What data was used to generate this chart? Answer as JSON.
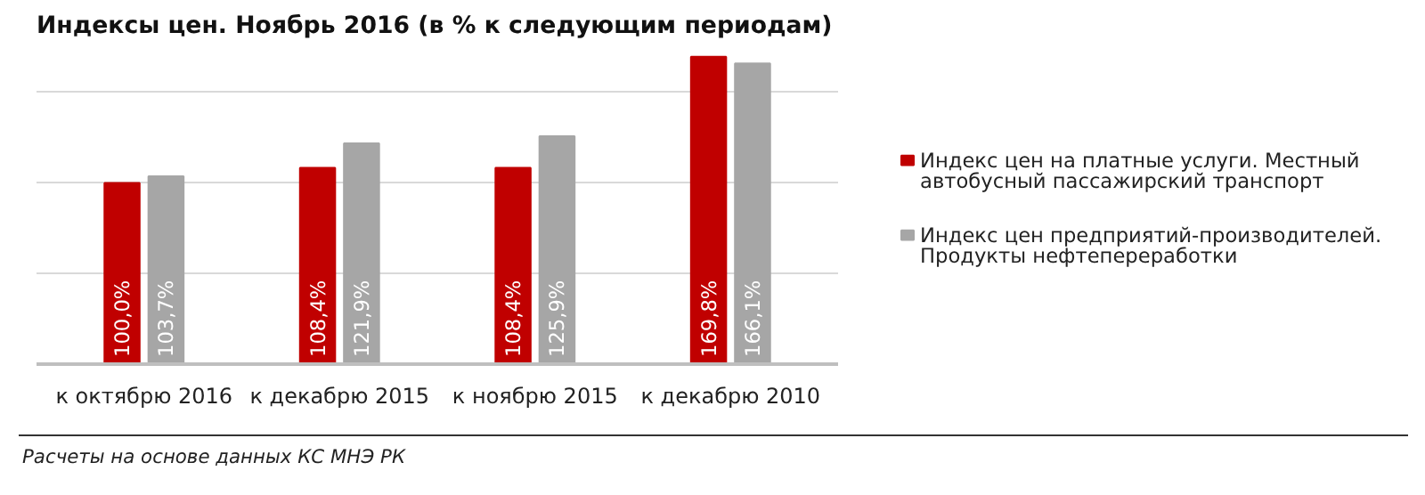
{
  "chart_data": {
    "type": "bar",
    "title": "Индексы цен. Ноябрь 2016 (в % к следующим периодам)",
    "categories": [
      "к октябрю 2016",
      "к декабрю 2015",
      "к ноябрю 2015",
      "к декабрю 2010"
    ],
    "series": [
      {
        "name": "Индекс цен на платные услуги. Местный автобусный пассажирский транспорт",
        "color": "#c00000",
        "values": [
          100.0,
          108.4,
          108.4,
          169.8
        ],
        "value_labels": [
          "100,0%",
          "108,4%",
          "108,4%",
          "169,8%"
        ]
      },
      {
        "name": "Индекс цен предприятий-производителей. Продукты нефтепереработки",
        "color": "#a6a6a6",
        "values": [
          103.7,
          121.9,
          125.9,
          166.1
        ],
        "value_labels": [
          "103,7%",
          "121,9%",
          "125,9%",
          "166,1%"
        ]
      }
    ],
    "tick_labels": "x",
    "grid": "y",
    "legend": "right",
    "annotations": [
      "Расчеты на основе данных КС МНЭ РК"
    ]
  }
}
